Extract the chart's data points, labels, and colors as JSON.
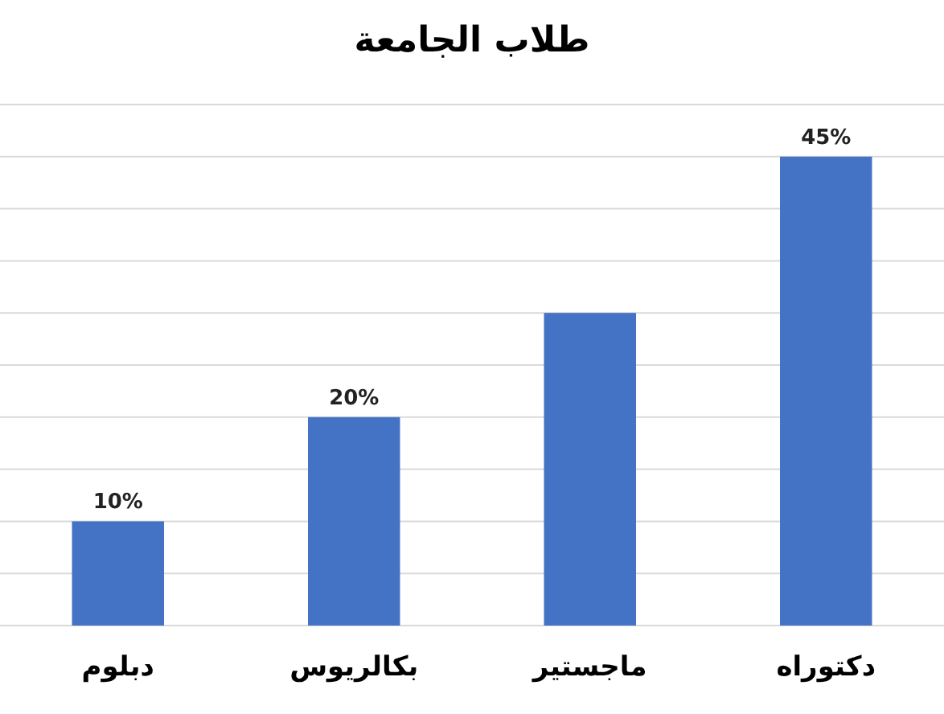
{
  "chart_data": {
    "type": "bar",
    "title": "طلاب الجامعة",
    "categories": [
      "دبلوم",
      "بكالريوس",
      "ماجستير",
      "دكتوراه"
    ],
    "values": [
      10,
      20,
      30,
      45
    ],
    "value_labels": [
      "10%",
      "20%",
      null,
      "45%"
    ],
    "color": "#4472c4",
    "ylim": [
      0,
      50
    ],
    "yticks": [
      {
        "value": 0,
        "label": null
      },
      {
        "value": 5,
        "label": null
      },
      {
        "value": 10,
        "label": null
      },
      {
        "value": 15,
        "label": null
      },
      {
        "value": 20,
        "label": null
      },
      {
        "value": 25,
        "label": null
      },
      {
        "value": 30,
        "label": null
      },
      {
        "value": 35,
        "label": null
      },
      {
        "value": 40,
        "label": null
      },
      {
        "value": 45,
        "label": null
      },
      {
        "value": 50,
        "label": null
      }
    ],
    "grid": "y"
  }
}
